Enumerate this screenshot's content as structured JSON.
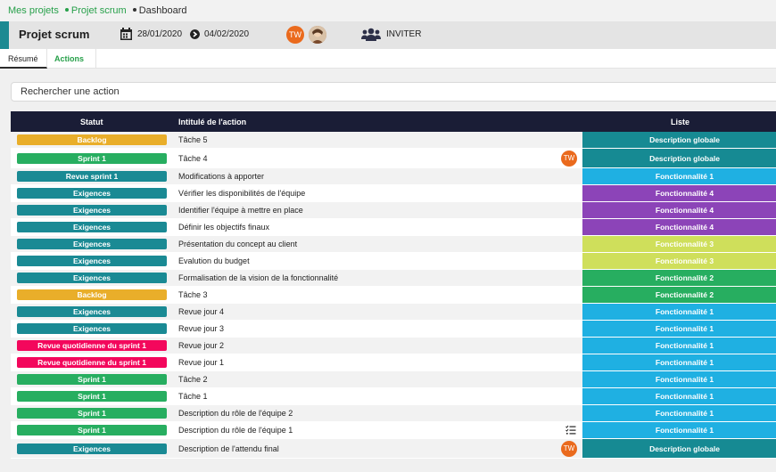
{
  "breadcrumb": {
    "item1": "Mes projets",
    "item2": "Projet scrum",
    "item3": "Dashboard"
  },
  "header": {
    "title": "Projet scrum",
    "date_start": "28/01/2020",
    "date_end": "04/02/2020",
    "avatar_initials": "TW",
    "invite_label": "INVITER"
  },
  "tabs": {
    "summary": "Résumé",
    "actions": "Actions"
  },
  "search": {
    "placeholder": "Rechercher une action"
  },
  "table": {
    "headers": {
      "status": "Statut",
      "title": "Intitulé de l'action",
      "list": "Liste"
    },
    "rows": [
      {
        "status": "Backlog",
        "title": "Tâche 5",
        "list": "Description globale"
      },
      {
        "status": "Sprint 1",
        "title": "Tâche 4",
        "list": "Description globale",
        "avatar": "TW"
      },
      {
        "status": "Revue sprint 1",
        "title": "Modifications à apporter",
        "list": "Fonctionnalité 1"
      },
      {
        "status": "Exigences",
        "title": "Vérifier les disponibilités de l'équipe",
        "list": "Fonctionnalité 4"
      },
      {
        "status": "Exigences",
        "title": "Identifier l'équipe à mettre en place",
        "list": "Fonctionnalité 4"
      },
      {
        "status": "Exigences",
        "title": "Définir les objectifs finaux",
        "list": "Fonctionnalité 4"
      },
      {
        "status": "Exigences",
        "title": "Présentation du concept au client",
        "list": "Fonctionnalité 3"
      },
      {
        "status": "Exigences",
        "title": "Evalution du budget",
        "list": "Fonctionnalité 3"
      },
      {
        "status": "Exigences",
        "title": "Formalisation de la vision de la fonctionnalité",
        "list": "Fonctionnalité 2"
      },
      {
        "status": "Backlog",
        "title": "Tâche 3",
        "list": "Fonctionnalité 2"
      },
      {
        "status": "Exigences",
        "title": "Revue jour 4",
        "list": "Fonctionnalité 1"
      },
      {
        "status": "Exigences",
        "title": "Revue jour 3",
        "list": "Fonctionnalité 1"
      },
      {
        "status": "Revue quotidienne du sprint 1",
        "title": "Revue jour 2",
        "list": "Fonctionnalité 1"
      },
      {
        "status": "Revue quotidienne du sprint 1",
        "title": "Revue jour 1",
        "list": "Fonctionnalité 1"
      },
      {
        "status": "Sprint 1",
        "title": "Tâche 2",
        "list": "Fonctionnalité 1"
      },
      {
        "status": "Sprint 1",
        "title": "Tâche 1",
        "list": "Fonctionnalité 1"
      },
      {
        "status": "Sprint 1",
        "title": "Description du rôle de l'équipe 2",
        "list": "Fonctionnalité 1"
      },
      {
        "status": "Sprint 1",
        "title": "Description du rôle de l'équipe 1",
        "list": "Fonctionnalité 1",
        "checklist_icon": "checklist-icon"
      },
      {
        "status": "Exigences",
        "title": "Description de l'attendu final",
        "list": "Description globale",
        "avatar": "TW"
      }
    ]
  },
  "colors": {
    "Backlog": "#e9ae2a",
    "Sprint 1": "#27ae60",
    "Revue sprint 1": "#1a8a94",
    "Exigences": "#1a8a94",
    "Revue quotidienne du sprint 1": "#f3075c",
    "Description globale": "#168a93",
    "Fonctionnalité 1": "#1fb0e2",
    "Fonctionnalité 2": "#27ae60",
    "Fonctionnalité 3": "#cfdf5b",
    "Fonctionnalité 4": "#8c44b8"
  }
}
